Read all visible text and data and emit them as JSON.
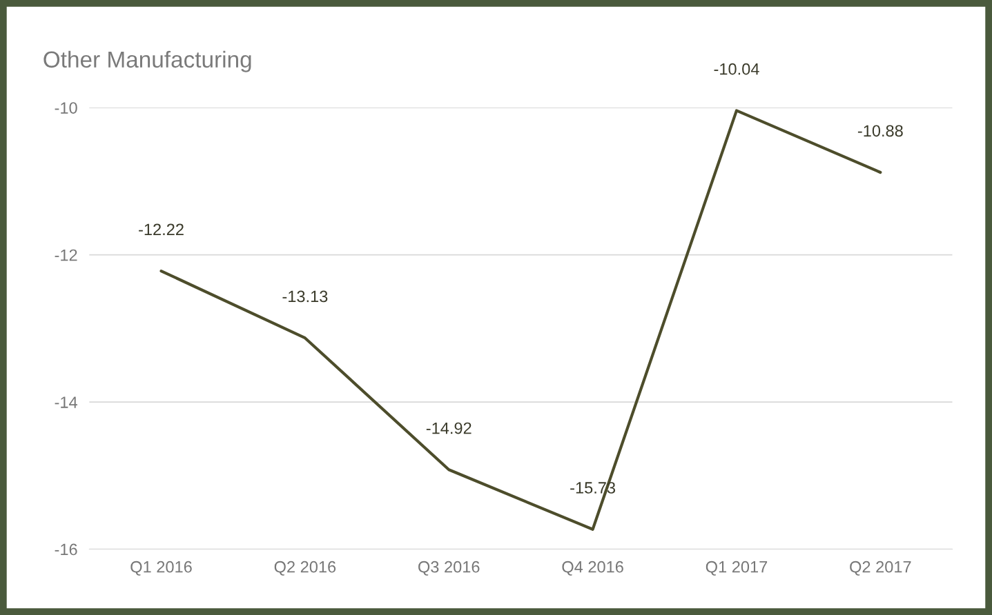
{
  "chart_data": {
    "type": "line",
    "title": "Other Manufacturing",
    "categories": [
      "Q1 2016",
      "Q2 2016",
      "Q3 2016",
      "Q4 2016",
      "Q1 2017",
      "Q2 2017"
    ],
    "series": [
      {
        "color": "#4d4d2b",
        "values": [
          -12.22,
          -13.13,
          -14.92,
          -15.73,
          -10.04,
          -10.88
        ]
      }
    ],
    "ylim": [
      -16,
      -10
    ],
    "yticks": [
      -16,
      -14,
      -12,
      -10
    ],
    "grid": "y",
    "data_labels": true,
    "marker": "none",
    "line_style": "solid"
  }
}
